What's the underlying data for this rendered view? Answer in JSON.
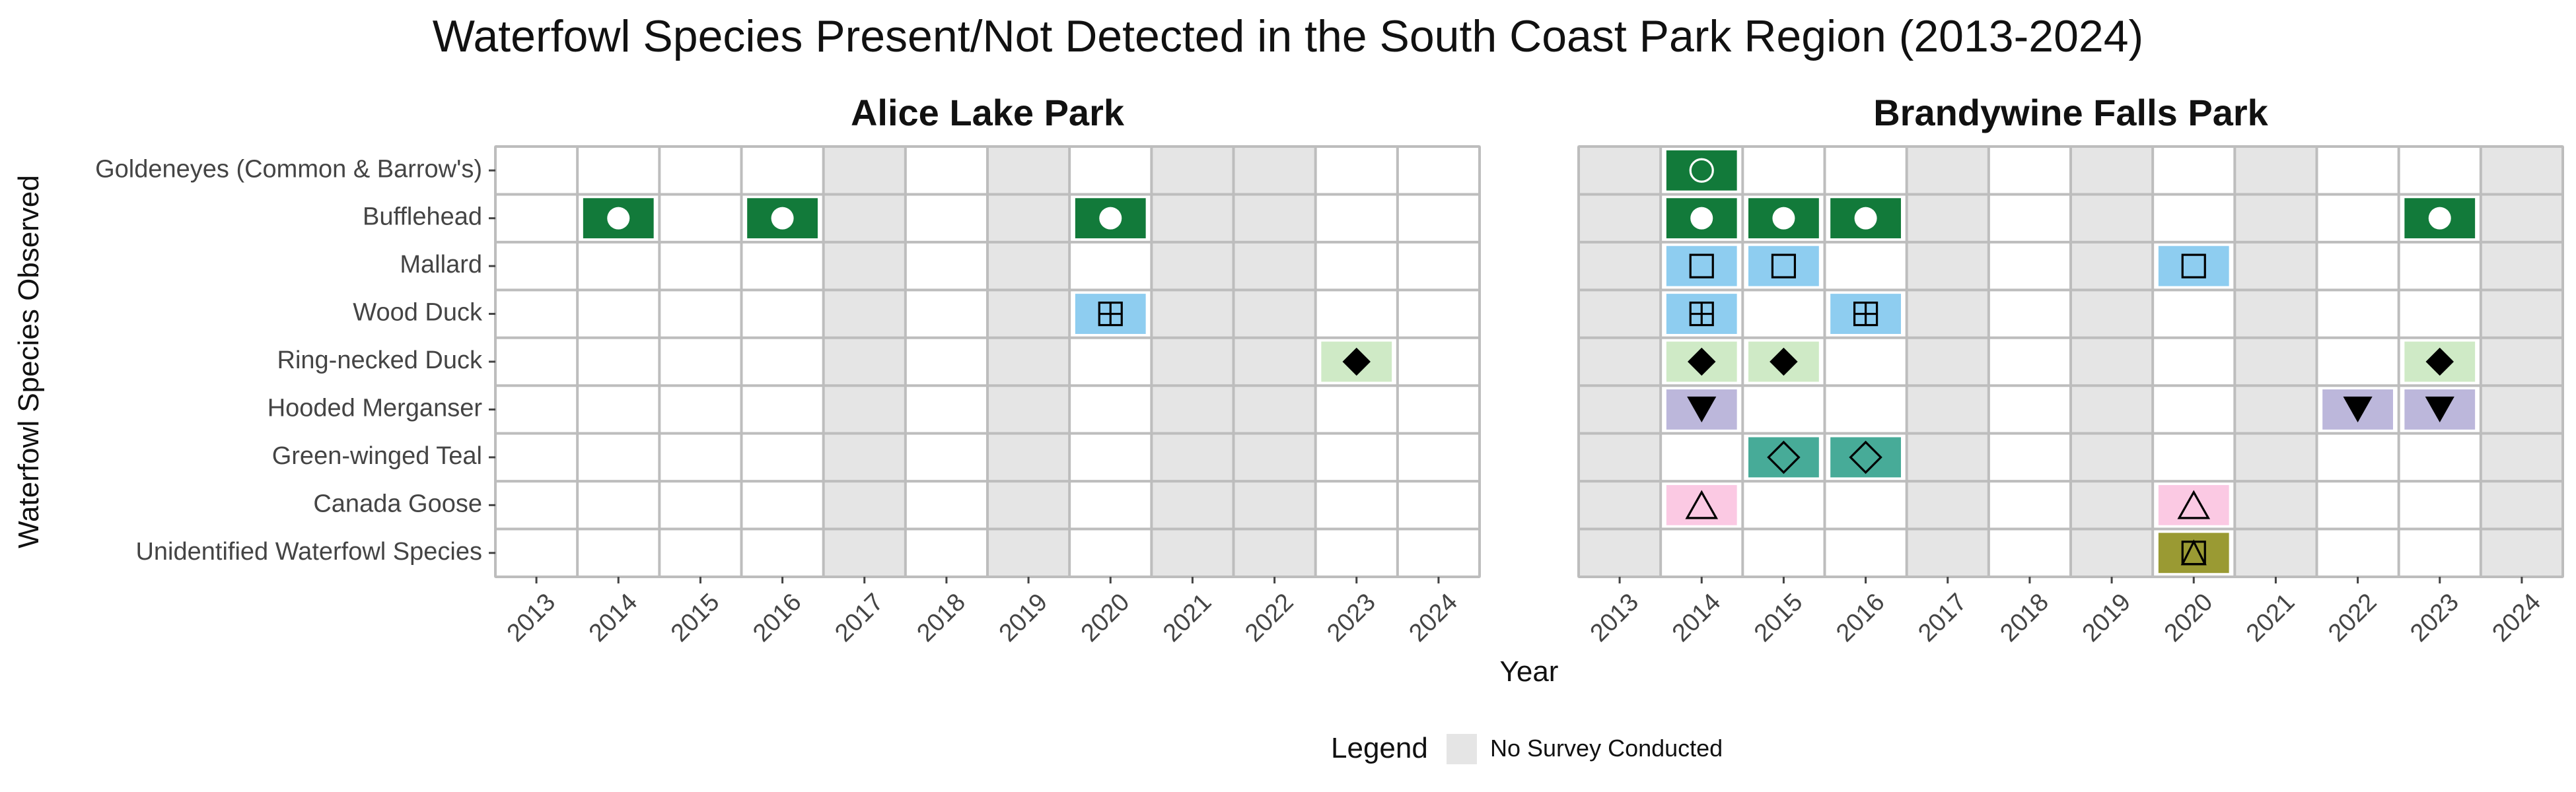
{
  "chart_data": {
    "type": "heatmap",
    "title": "Waterfowl Species Present/Not Detected in the South Coast Park Region (2013-2024)",
    "xlabel": "Year",
    "ylabel": "Waterfowl Species Observed",
    "years": [
      "2013",
      "2014",
      "2015",
      "2016",
      "2017",
      "2018",
      "2019",
      "2020",
      "2021",
      "2022",
      "2023",
      "2024"
    ],
    "species": [
      "Goldeneyes (Common & Barrow's)",
      "Bufflehead",
      "Mallard",
      "Wood Duck",
      "Ring-necked Duck",
      "Hooded Merganser",
      "Green-winged Teal",
      "Canada Goose",
      "Unidentified Waterfowl Species"
    ],
    "legend": {
      "title": "Legend",
      "items": [
        {
          "label": "No Survey Conducted",
          "color": "#e5e5e5"
        }
      ]
    },
    "species_styles": {
      "Goldeneyes (Common & Barrow's)": {
        "color": "#127a3a",
        "shape": "circle-open"
      },
      "Bufflehead": {
        "color": "#127a3a",
        "shape": "circle-filled"
      },
      "Mallard": {
        "color": "#8ecdf0",
        "shape": "square-open"
      },
      "Wood Duck": {
        "color": "#8ecdf0",
        "shape": "square-plus"
      },
      "Ring-necked Duck": {
        "color": "#cfeac6",
        "shape": "diamond-filled"
      },
      "Hooded Merganser": {
        "color": "#bcb7db",
        "shape": "triangle-down-filled"
      },
      "Green-winged Teal": {
        "color": "#47ab98",
        "shape": "diamond-open"
      },
      "Canada Goose": {
        "color": "#fbc9e3",
        "shape": "triangle-open"
      },
      "Unidentified Waterfowl Species": {
        "color": "#9a9a33",
        "shape": "square-triangle"
      }
    },
    "panels": [
      {
        "name": "Alice Lake Park",
        "no_survey_years": [
          "2017",
          "2019",
          "2021",
          "2022"
        ],
        "detections": [
          {
            "species": "Bufflehead",
            "years": [
              "2014",
              "2016",
              "2020"
            ]
          },
          {
            "species": "Wood Duck",
            "years": [
              "2020"
            ]
          },
          {
            "species": "Ring-necked Duck",
            "years": [
              "2023"
            ]
          }
        ]
      },
      {
        "name": "Brandywine Falls Park",
        "no_survey_years": [
          "2013",
          "2017",
          "2019",
          "2021",
          "2024"
        ],
        "detections": [
          {
            "species": "Goldeneyes (Common & Barrow's)",
            "years": [
              "2014"
            ]
          },
          {
            "species": "Bufflehead",
            "years": [
              "2014",
              "2015",
              "2016",
              "2023"
            ]
          },
          {
            "species": "Mallard",
            "years": [
              "2014",
              "2015",
              "2020"
            ]
          },
          {
            "species": "Wood Duck",
            "years": [
              "2014",
              "2016"
            ]
          },
          {
            "species": "Ring-necked Duck",
            "years": [
              "2014",
              "2015",
              "2023"
            ]
          },
          {
            "species": "Hooded Merganser",
            "years": [
              "2014",
              "2022",
              "2023"
            ]
          },
          {
            "species": "Green-winged Teal",
            "years": [
              "2015",
              "2016"
            ]
          },
          {
            "species": "Canada Goose",
            "years": [
              "2014",
              "2020"
            ]
          },
          {
            "species": "Unidentified Waterfowl Species",
            "years": [
              "2020"
            ]
          }
        ]
      }
    ]
  }
}
